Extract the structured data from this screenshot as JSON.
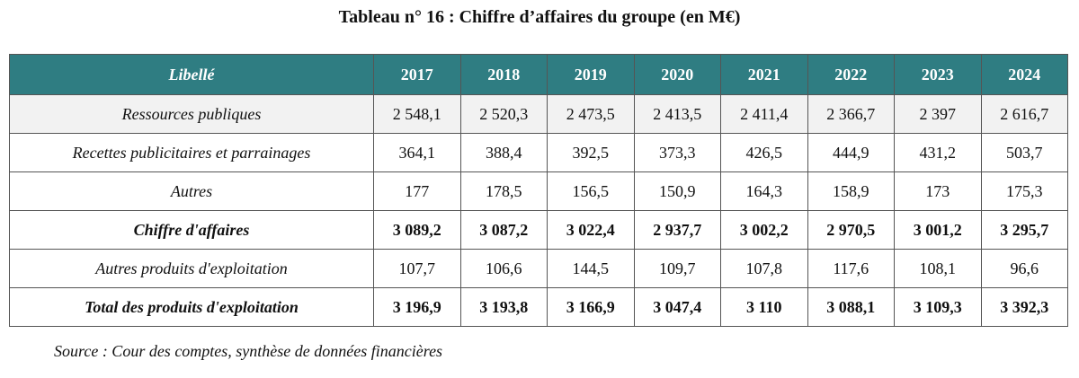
{
  "title": "Tableau n° 16 : Chiffre d’affaires du groupe (en M€)",
  "table": {
    "header": [
      "Libellé",
      "2017",
      "2018",
      "2019",
      "2020",
      "2021",
      "2022",
      "2023",
      "2024"
    ],
    "rows": [
      [
        "Ressources publiques",
        "2 548,1",
        "2 520,3",
        "2 473,5",
        "2 413,5",
        "2 411,4",
        "2 366,7",
        "2 397",
        "2 616,7"
      ],
      [
        "Recettes publicitaires et parrainages",
        "364,1",
        "388,4",
        "392,5",
        "373,3",
        "426,5",
        "444,9",
        "431,2",
        "503,7"
      ],
      [
        "Autres",
        "177",
        "178,5",
        "156,5",
        "150,9",
        "164,3",
        "158,9",
        "173",
        "175,3"
      ],
      [
        "Chiffre d'affaires",
        "3 089,2",
        "3 087,2",
        "3 022,4",
        "2 937,7",
        "3 002,2",
        "2 970,5",
        "3 001,2",
        "3 295,7"
      ],
      [
        "Autres produits d'exploitation",
        "107,7",
        "106,6",
        "144,5",
        "109,7",
        "107,8",
        "117,6",
        "108,1",
        "96,6"
      ],
      [
        "Total des produits d'exploitation",
        "3 196,9",
        "3 193,8",
        "3 166,9",
        "3 047,4",
        "3 110",
        "3 088,1",
        "3 109,3",
        "3 392,3"
      ]
    ]
  },
  "source": "Source : Cour des comptes, synthèse de données financières"
}
